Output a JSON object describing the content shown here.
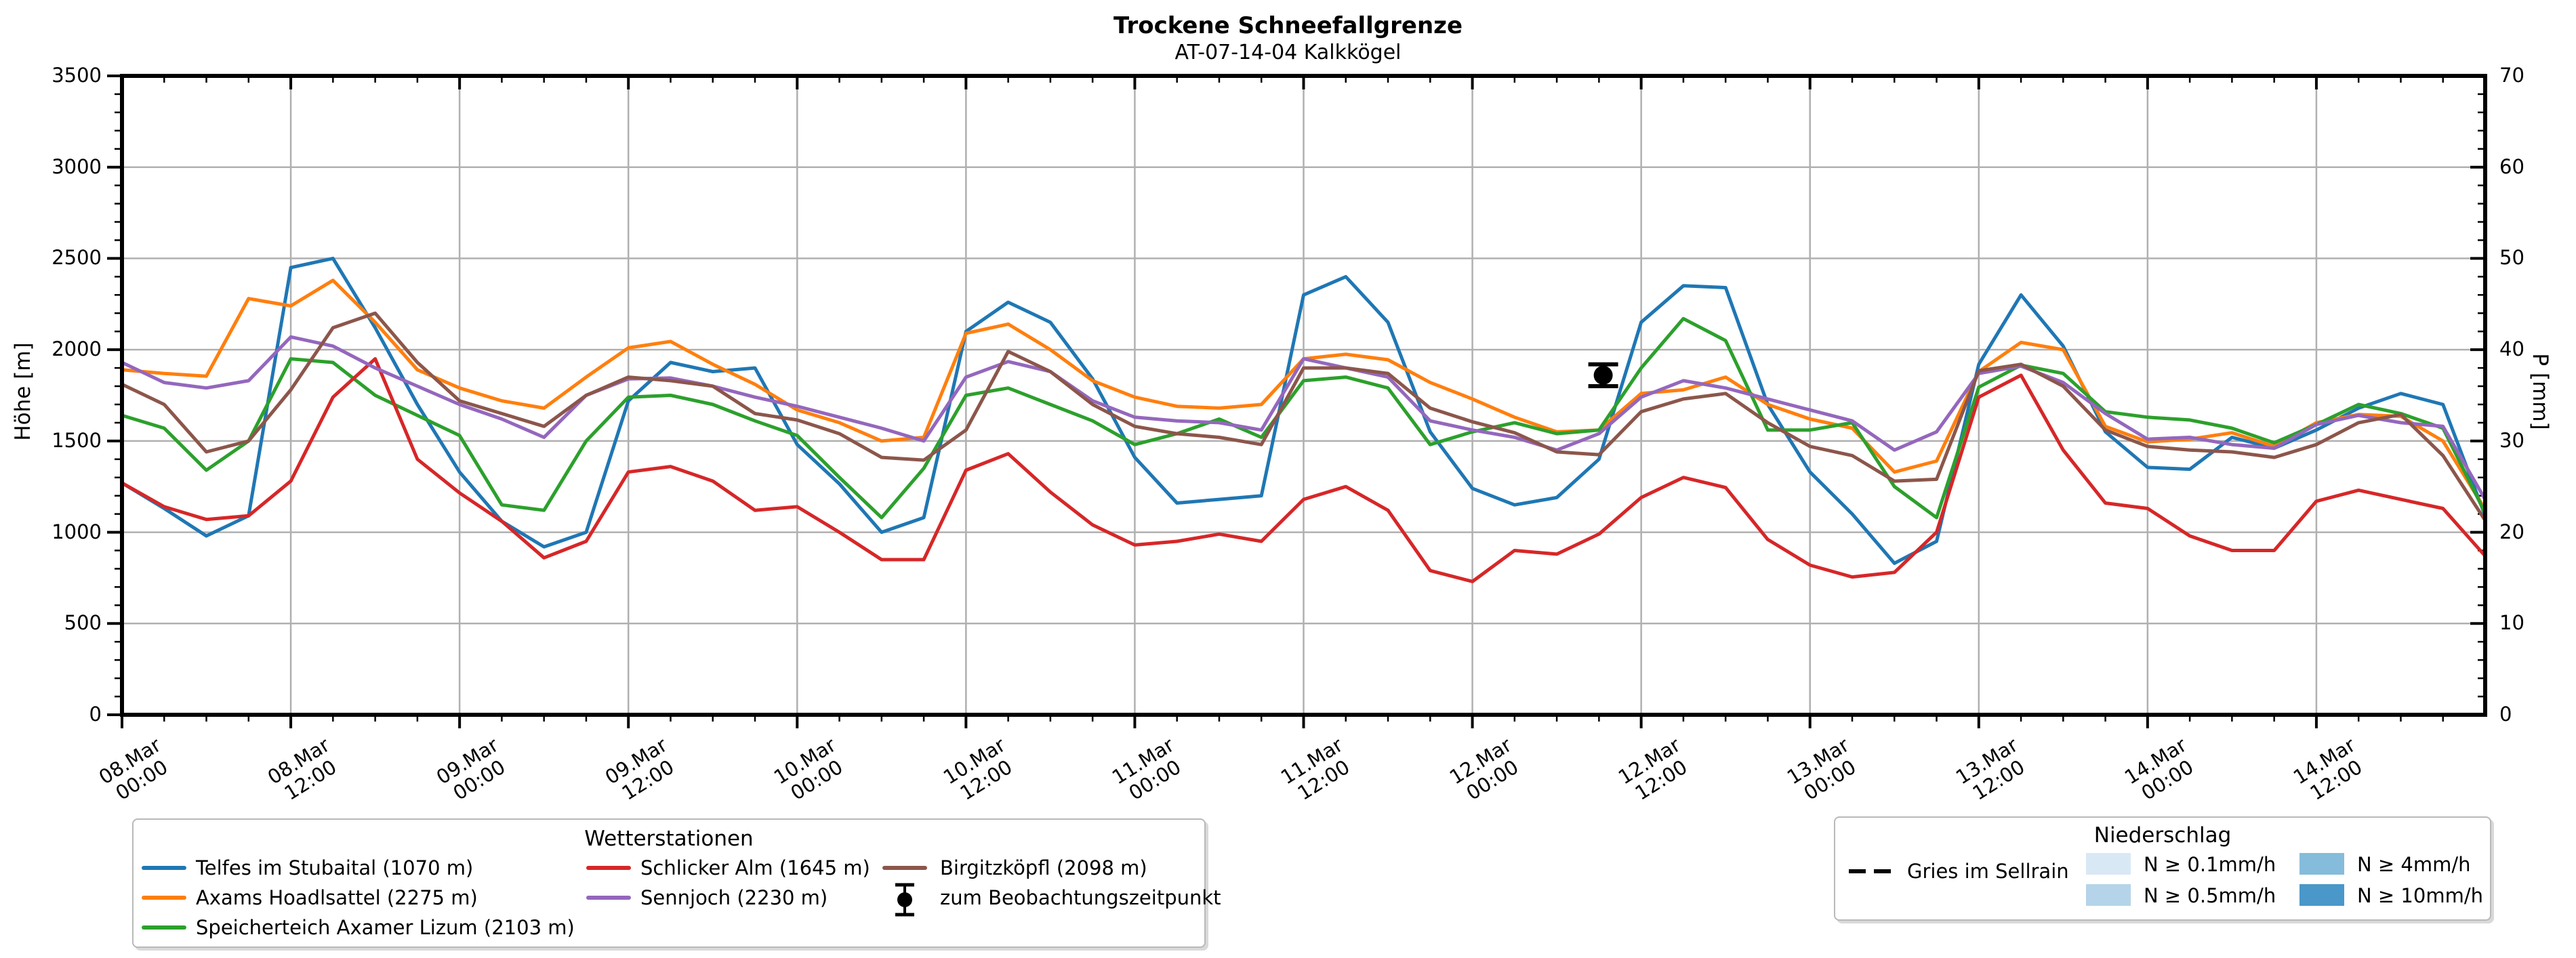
{
  "title": "Trockene Schneefallgrenze",
  "subtitle": "AT-07-14-04 Kalkkögel",
  "axes": {
    "y_left_label": "Höhe [m]",
    "y_right_label": "P [mm]",
    "y_left_ticks": [
      0,
      500,
      1000,
      1500,
      2000,
      2500,
      3000,
      3500
    ],
    "y_right_ticks": [
      0,
      10,
      20,
      30,
      40,
      50,
      60,
      70
    ]
  },
  "legend_stations": {
    "title": "Wetterstationen",
    "items": [
      {
        "label": "Telfes im Stubaital (1070 m)",
        "color": "#1f77b4"
      },
      {
        "label": "Axams Hoadlsattel (2275 m)",
        "color": "#ff7f0e"
      },
      {
        "label": "Speicherteich Axamer Lizum (2103 m)",
        "color": "#2ca02c"
      },
      {
        "label": "Schlicker Alm (1645 m)",
        "color": "#d62728"
      },
      {
        "label": "Sennjoch (2230 m)",
        "color": "#9467bd"
      },
      {
        "label": "Birgitzköpfl (2098 m)",
        "color": "#8c564b"
      },
      {
        "label": "zum Beobachtungszeitpunkt",
        "color": "#000000"
      }
    ]
  },
  "legend_precip": {
    "title": "Niederschlag",
    "dashed_item": {
      "label": "Gries im Sellrain",
      "color": "#000000"
    },
    "classes": [
      {
        "label": "N ≥ 0.1mm/h",
        "color": "#d9e8f5"
      },
      {
        "label": "N ≥ 0.5mm/h",
        "color": "#b5d4e9"
      },
      {
        "label": "N ≥ 4mm/h",
        "color": "#85bcdb"
      },
      {
        "label": "N ≥ 10mm/h",
        "color": "#4a97c9"
      }
    ]
  },
  "chart_data": {
    "type": "line",
    "title": "Trockene Schneefallgrenze",
    "xlabel": "",
    "ylabel_left": "Höhe [m]",
    "ylabel_right": "P [mm]",
    "ylim_left": [
      0,
      3500
    ],
    "ylim_right": [
      0,
      70
    ],
    "grid": true,
    "x_domain_hours": [
      0,
      168
    ],
    "x_start": "08.Mar 00:00",
    "x_ticks": [
      {
        "h": 0,
        "label": "08.Mar\n00:00"
      },
      {
        "h": 12,
        "label": "08.Mar\n12:00"
      },
      {
        "h": 24,
        "label": "09.Mar\n00:00"
      },
      {
        "h": 36,
        "label": "09.Mar\n12:00"
      },
      {
        "h": 48,
        "label": "10.Mar\n00:00"
      },
      {
        "h": 60,
        "label": "10.Mar\n12:00"
      },
      {
        "h": 72,
        "label": "11.Mar\n00:00"
      },
      {
        "h": 84,
        "label": "11.Mar\n12:00"
      },
      {
        "h": 96,
        "label": "12.Mar\n00:00"
      },
      {
        "h": 108,
        "label": "12.Mar\n12:00"
      },
      {
        "h": 120,
        "label": "13.Mar\n00:00"
      },
      {
        "h": 132,
        "label": "13.Mar\n12:00"
      },
      {
        "h": 144,
        "label": "14.Mar\n00:00"
      },
      {
        "h": 156,
        "label": "14.Mar\n12:00"
      }
    ],
    "x_hours": [
      0,
      3,
      6,
      9,
      12,
      15,
      18,
      21,
      24,
      27,
      30,
      33,
      36,
      39,
      42,
      45,
      48,
      51,
      54,
      57,
      60,
      63,
      66,
      69,
      72,
      75,
      78,
      81,
      84,
      87,
      90,
      93,
      96,
      99,
      102,
      105,
      108,
      111,
      114,
      117,
      120,
      123,
      126,
      129,
      132,
      135,
      138,
      141,
      144,
      147,
      150,
      153,
      156,
      159,
      162,
      165,
      168
    ],
    "series": [
      {
        "name": "Telfes im Stubaital (1070 m)",
        "color": "#1f77b4",
        "values": [
          1270,
          1130,
          980,
          1090,
          2450,
          2500,
          2120,
          1700,
          1330,
          1060,
          920,
          1000,
          1720,
          1930,
          1880,
          1900,
          1480,
          1265,
          1000,
          1080,
          2100,
          2260,
          2150,
          1840,
          1410,
          1160,
          1180,
          1200,
          2300,
          2400,
          2150,
          1550,
          1240,
          1150,
          1190,
          1400,
          2150,
          2350,
          2340,
          1700,
          1330,
          1100,
          830,
          950,
          1920,
          2300,
          2020,
          1550,
          1355,
          1345,
          1520,
          1460,
          1560,
          1680,
          1760,
          1700,
          1090
        ]
      },
      {
        "name": "Axams Hoadlsattel (2275 m)",
        "color": "#ff7f0e",
        "values": [
          1890,
          1870,
          1855,
          2280,
          2240,
          2380,
          2150,
          1890,
          1790,
          1720,
          1680,
          1850,
          2010,
          2045,
          1920,
          1810,
          1670,
          1600,
          1500,
          1520,
          2090,
          2140,
          2000,
          1830,
          1740,
          1690,
          1680,
          1700,
          1950,
          1975,
          1945,
          1820,
          1730,
          1630,
          1550,
          1560,
          1760,
          1780,
          1850,
          1700,
          1620,
          1570,
          1330,
          1390,
          1880,
          2040,
          2000,
          1580,
          1495,
          1510,
          1545,
          1470,
          1600,
          1645,
          1635,
          1500,
          1125
        ]
      },
      {
        "name": "Speicherteich Axamer Lizum (2103 m)",
        "color": "#2ca02c",
        "values": [
          1640,
          1570,
          1340,
          1500,
          1950,
          1930,
          1750,
          1640,
          1530,
          1150,
          1120,
          1500,
          1740,
          1750,
          1700,
          1610,
          1530,
          1300,
          1080,
          1350,
          1750,
          1790,
          1700,
          1610,
          1480,
          1540,
          1620,
          1520,
          1830,
          1850,
          1790,
          1480,
          1550,
          1600,
          1540,
          1560,
          1900,
          2170,
          2050,
          1560,
          1560,
          1600,
          1250,
          1080,
          1795,
          1915,
          1870,
          1660,
          1630,
          1615,
          1570,
          1490,
          1590,
          1700,
          1650,
          1570,
          1105
        ]
      },
      {
        "name": "Schlicker Alm (1645 m)",
        "color": "#d62728",
        "values": [
          1270,
          1140,
          1070,
          1090,
          1280,
          1740,
          1950,
          1400,
          1215,
          1060,
          860,
          950,
          1330,
          1360,
          1280,
          1120,
          1140,
          1000,
          850,
          850,
          1340,
          1430,
          1220,
          1040,
          930,
          950,
          990,
          950,
          1180,
          1250,
          1120,
          790,
          730,
          900,
          880,
          990,
          1190,
          1300,
          1245,
          960,
          820,
          755,
          780,
          1000,
          1740,
          1860,
          1450,
          1160,
          1130,
          980,
          900,
          900,
          1170,
          1230,
          1180,
          1130,
          870
        ]
      },
      {
        "name": "Sennjoch (2230 m)",
        "color": "#9467bd",
        "values": [
          1930,
          1820,
          1790,
          1830,
          2070,
          2020,
          1900,
          1800,
          1700,
          1620,
          1520,
          1750,
          1840,
          1845,
          1800,
          1740,
          1690,
          1630,
          1570,
          1500,
          1850,
          1935,
          1880,
          1720,
          1630,
          1610,
          1600,
          1560,
          1950,
          1900,
          1850,
          1610,
          1560,
          1520,
          1450,
          1540,
          1740,
          1830,
          1790,
          1730,
          1670,
          1610,
          1450,
          1550,
          1870,
          1910,
          1820,
          1650,
          1510,
          1520,
          1480,
          1460,
          1590,
          1640,
          1600,
          1580,
          1180
        ]
      },
      {
        "name": "Birgitzköpfl (2098 m)",
        "color": "#8c564b",
        "values": [
          1810,
          1700,
          1440,
          1500,
          1780,
          2120,
          2200,
          1930,
          1720,
          1650,
          1580,
          1750,
          1850,
          1830,
          1800,
          1650,
          1615,
          1540,
          1410,
          1395,
          1560,
          1990,
          1880,
          1700,
          1580,
          1540,
          1520,
          1480,
          1900,
          1900,
          1870,
          1680,
          1605,
          1545,
          1440,
          1425,
          1660,
          1730,
          1760,
          1600,
          1470,
          1420,
          1280,
          1290,
          1884,
          1920,
          1800,
          1560,
          1470,
          1450,
          1440,
          1410,
          1480,
          1600,
          1645,
          1420,
          1065
        ]
      }
    ],
    "observation_marker": {
      "label": "zum Beobachtungszeitpunkt",
      "hour": 105.3,
      "time": "12.Mar 09:20",
      "value": 1860,
      "error": 60,
      "color": "#000000"
    },
    "legend_position": "below"
  }
}
